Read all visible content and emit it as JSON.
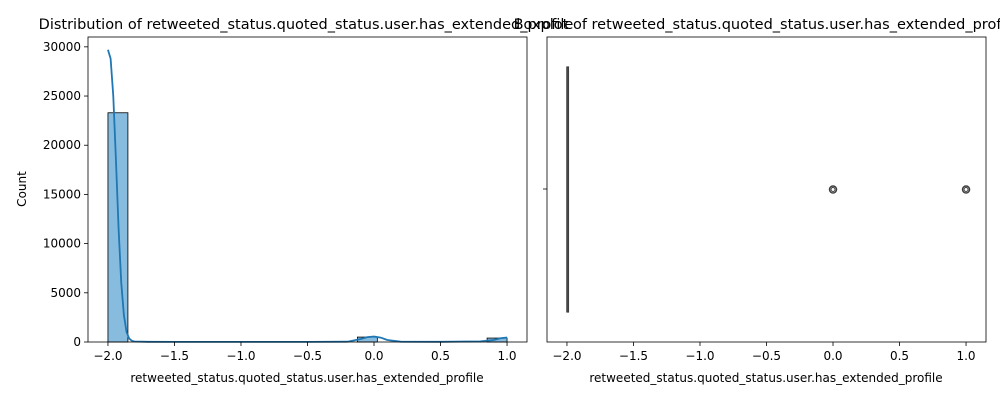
{
  "chart_data": [
    {
      "type": "bar",
      "title": "Distribution of retweeted_status.quoted_status.user.has_extended_profile",
      "xlabel": "retweeted_status.quoted_status.user.has_extended_profile",
      "ylabel": "Count",
      "xlim": [
        -2.15,
        1.15
      ],
      "ylim": [
        0,
        31000
      ],
      "x_ticks": [
        -2.0,
        -1.5,
        -1.0,
        -0.5,
        0.0,
        0.5,
        1.0
      ],
      "x_tick_labels": [
        "−2.0",
        "−1.5",
        "−1.0",
        "−0.5",
        "0.0",
        "0.5",
        "1.0"
      ],
      "y_ticks": [
        0,
        5000,
        10000,
        15000,
        20000,
        25000,
        30000
      ],
      "y_tick_labels": [
        "0",
        "5000",
        "10000",
        "15000",
        "20000",
        "25000",
        "30000"
      ],
      "bins": [
        {
          "x0": -2.0,
          "x1": -1.85,
          "count": 23300
        },
        {
          "x0": -0.125,
          "x1": 0.025,
          "count": 500
        },
        {
          "x0": 0.85,
          "x1": 1.0,
          "count": 400
        }
      ],
      "kde": {
        "x": [
          -2.0,
          -1.98,
          -1.96,
          -1.94,
          -1.92,
          -1.9,
          -1.88,
          -1.86,
          -1.84,
          -1.82,
          -1.8,
          -1.7,
          -1.5,
          -1.0,
          -0.5,
          -0.2,
          -0.1,
          -0.05,
          0.0,
          0.05,
          0.1,
          0.2,
          0.5,
          0.8,
          0.9,
          0.95,
          1.0
        ],
        "y": [
          29700,
          28800,
          25000,
          18500,
          11500,
          6000,
          2700,
          1000,
          350,
          120,
          50,
          20,
          15,
          15,
          15,
          30,
          300,
          500,
          550,
          450,
          200,
          30,
          20,
          60,
          200,
          380,
          450
        ]
      },
      "colors": {
        "bar": "#88bcdf",
        "kde": "#1f77b4"
      },
      "grid": false
    },
    {
      "type": "box",
      "title": "Boxplot of retweeted_status.quoted_status.user.has_extended_profile",
      "xlabel": "retweeted_status.quoted_status.user.has_extended_profile",
      "xlim": [
        -2.15,
        1.15
      ],
      "x_ticks": [
        -2.0,
        -1.5,
        -1.0,
        -0.5,
        0.0,
        0.5,
        1.0
      ],
      "x_tick_labels": [
        "−2.0",
        "−1.5",
        "−1.0",
        "−0.5",
        "0.0",
        "0.5",
        "1.0"
      ],
      "box": {
        "min": -2.0,
        "q1": -2.0,
        "median": -2.0,
        "q3": -2.0,
        "max": -2.0
      },
      "outliers": [
        0.0,
        1.0
      ],
      "grid": false
    }
  ]
}
